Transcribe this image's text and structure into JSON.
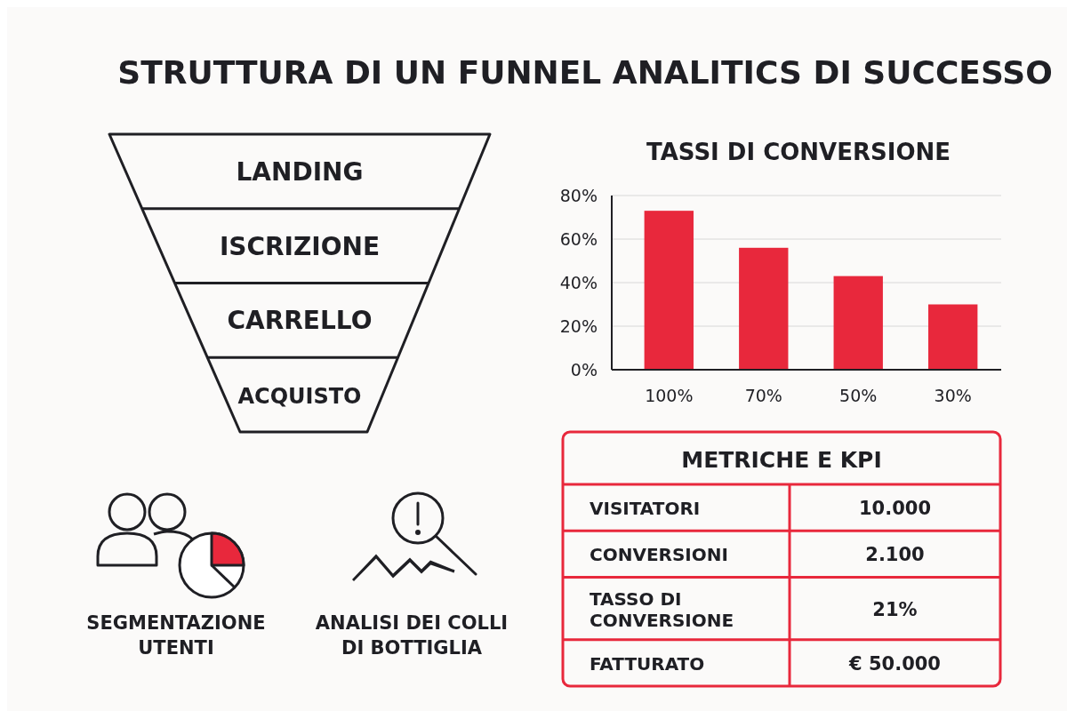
{
  "chart_data": [
    {
      "type": "other",
      "title": "STRUTTURA DI UN FUNNEL ANALITICS DI SUCCESSO",
      "categories": [
        "LANDING",
        "ISCRIZIONE",
        "CARRELLO",
        "ACQUISTO"
      ]
    },
    {
      "type": "bar",
      "title": "TASSI DI CONVERSIONE",
      "categories": [
        "100%",
        "70%",
        "50%",
        "30%"
      ],
      "values": [
        73,
        56,
        43,
        30
      ],
      "color": "#e8283c",
      "ylim": [
        0,
        80
      ],
      "yticks": [
        {
          "value": 0,
          "label": "0%"
        },
        {
          "value": 20,
          "label": "20%"
        },
        {
          "value": 40,
          "label": "40%"
        },
        {
          "value": 60,
          "label": "60%"
        },
        {
          "value": 80,
          "label": "80%"
        }
      ],
      "grid": "y"
    },
    {
      "type": "other",
      "title": "METRICHE E KPI",
      "categories": [
        "VISITATORI",
        "CONVERSIONI",
        "TASSO DI CONVERSIONE",
        "FATTURATO"
      ],
      "value_labels": [
        "10.000",
        "2.100",
        "21%",
        "€ 50.000"
      ]
    },
    {
      "type": "other",
      "annotations": [
        "SEGMENTAZIONE UTENTI",
        "ANALISI DEI COLLI DI BOTTIGLIA"
      ]
    }
  ]
}
